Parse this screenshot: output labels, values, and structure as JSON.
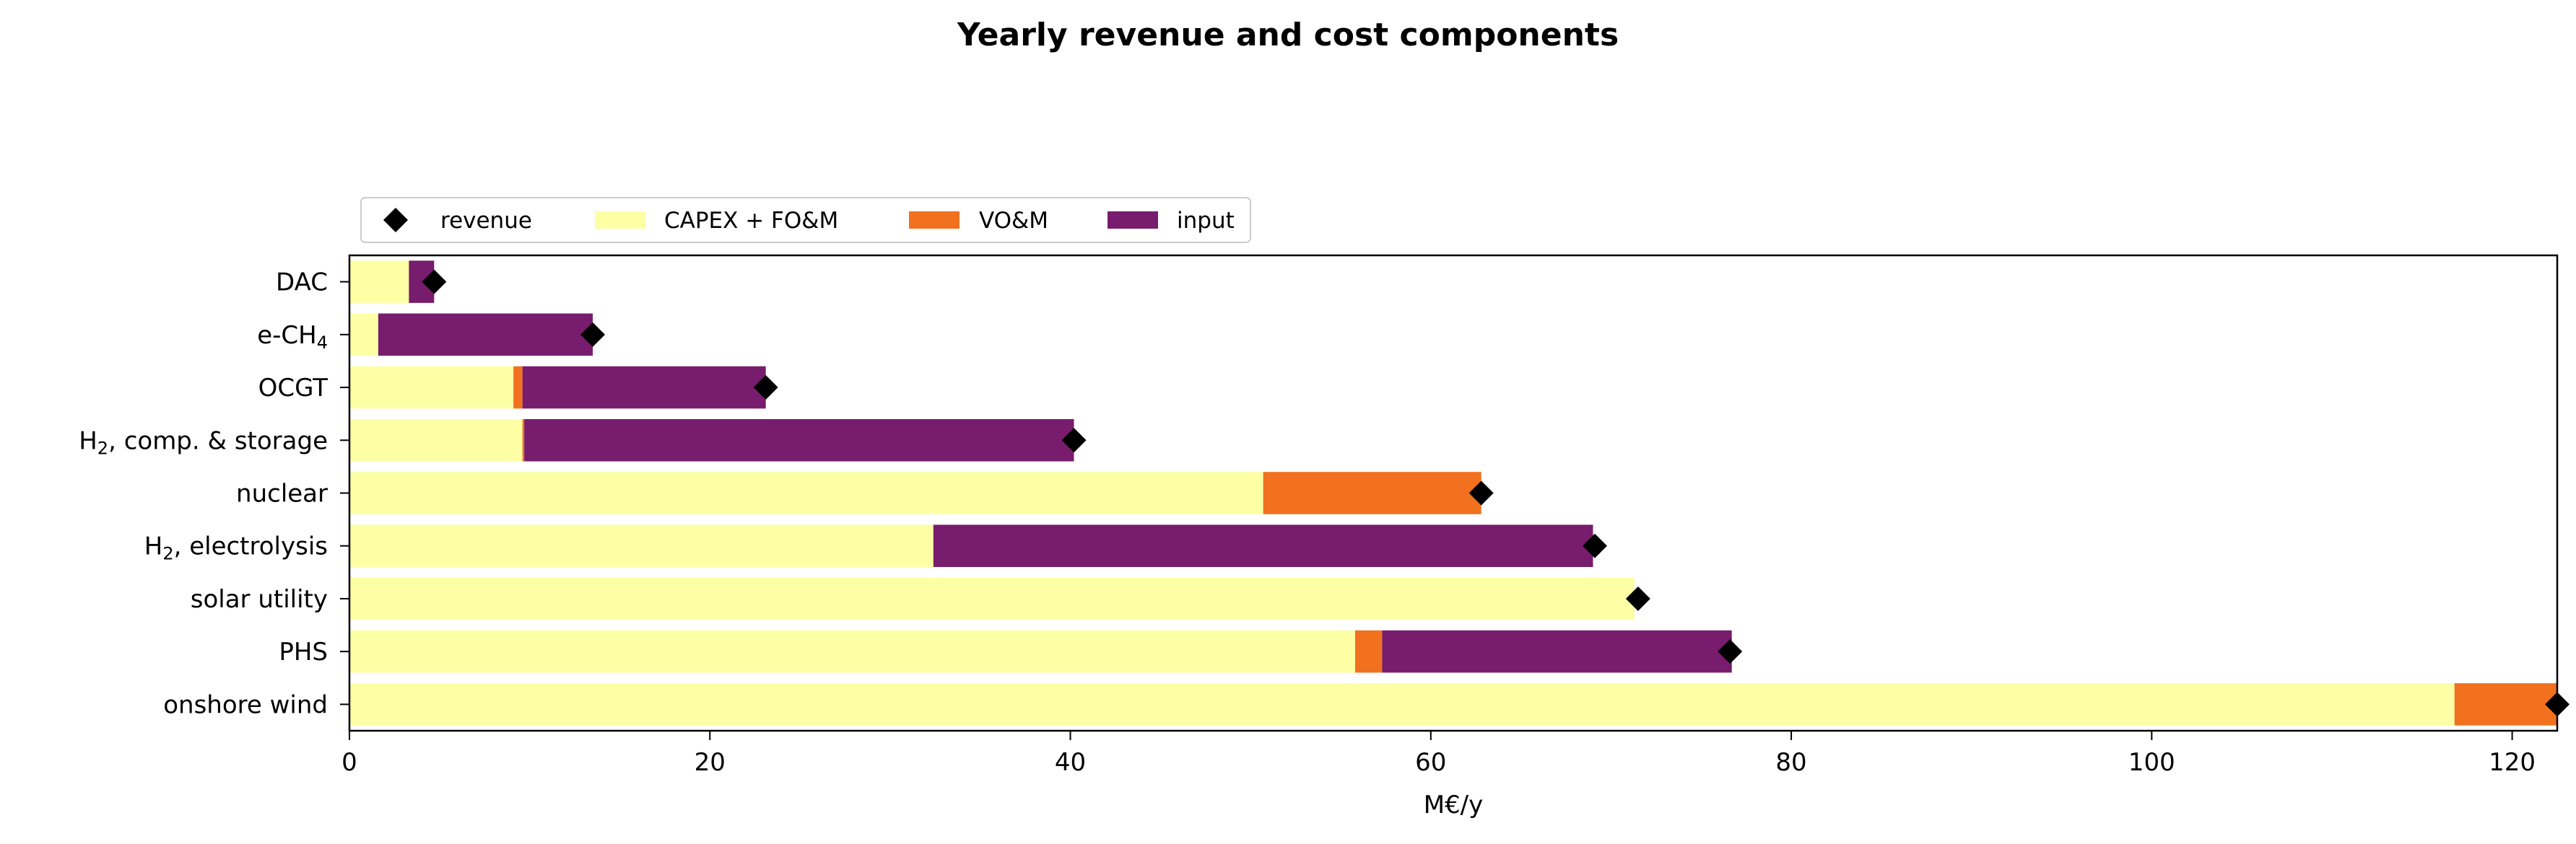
{
  "chart_data": {
    "type": "bar",
    "orientation": "horizontal",
    "stacked": true,
    "title": "Yearly revenue and cost components",
    "xlabel": "M€/y",
    "ylabel": "",
    "xlim": [
      0,
      122.5
    ],
    "xticks": [
      0,
      20,
      40,
      60,
      80,
      100,
      120
    ],
    "categories": [
      {
        "pre": "DAC",
        "sub": "",
        "post": ""
      },
      {
        "pre": "e-CH",
        "sub": "4",
        "post": ""
      },
      {
        "pre": "OCGT",
        "sub": "",
        "post": ""
      },
      {
        "pre": "H",
        "sub": "2",
        "post": ", comp. & storage"
      },
      {
        "pre": "nuclear",
        "sub": "",
        "post": ""
      },
      {
        "pre": "H",
        "sub": "2",
        "post": ", electrolysis"
      },
      {
        "pre": "solar utility",
        "sub": "",
        "post": ""
      },
      {
        "pre": "PHS",
        "sub": "",
        "post": ""
      },
      {
        "pre": "onshore wind",
        "sub": "",
        "post": ""
      }
    ],
    "series": [
      {
        "name": "CAPEX + FO&M",
        "color": "#fcffa4",
        "values": [
          3.3,
          1.6,
          9.1,
          9.6,
          50.7,
          32.4,
          71.3,
          55.8,
          116.8
        ]
      },
      {
        "name": "VO&M",
        "color": "#f1711f",
        "values": [
          0.0,
          0.0,
          0.5,
          0.1,
          12.1,
          0.0,
          0.0,
          1.5,
          5.7
        ]
      },
      {
        "name": "input",
        "color": "#781c6d",
        "values": [
          1.4,
          11.9,
          13.5,
          30.5,
          0.0,
          36.6,
          0.0,
          19.4,
          0.0
        ]
      }
    ],
    "revenue": {
      "name": "revenue",
      "color": "#000000",
      "values": [
        4.7,
        13.5,
        23.1,
        40.2,
        62.8,
        69.1,
        71.5,
        76.6,
        122.5
      ]
    },
    "legend": {
      "placement": "above-top-left",
      "order": [
        "revenue",
        "CAPEX + FO&M",
        "VO&M",
        "input"
      ]
    },
    "grid": false
  }
}
